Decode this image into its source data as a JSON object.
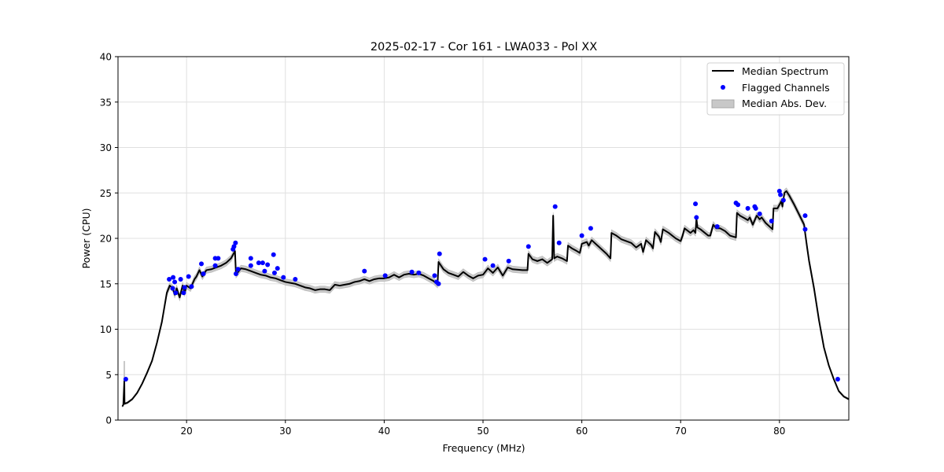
{
  "chart_data": {
    "type": "line",
    "title": "2025-02-17 - Cor 161 - LWA033 - Pol XX",
    "xlabel": "Frequency (MHz)",
    "ylabel": "Power (CPU)",
    "xlim": [
      13.06,
      87.02
    ],
    "ylim": [
      0,
      40
    ],
    "xticks": [
      20,
      30,
      40,
      50,
      60,
      70,
      80
    ],
    "yticks": [
      0,
      5,
      10,
      15,
      20,
      25,
      30,
      35,
      40
    ],
    "grid": true,
    "legend_position": "top-right",
    "legend": [
      "Median Spectrum",
      "Flagged Channels",
      "Median Abs. Dev."
    ],
    "colors": {
      "median": "#000000",
      "flagged": "#0000ff",
      "mad": "#c8c8c8"
    },
    "mad_halfwidth": 0.35,
    "series": [
      {
        "name": "Median Spectrum",
        "points": [
          [
            13.5,
            1.5
          ],
          [
            13.6,
            1.7
          ],
          [
            13.7,
            4.3
          ],
          [
            13.72,
            1.8
          ],
          [
            14,
            1.9
          ],
          [
            14.5,
            2.3
          ],
          [
            15,
            3.0
          ],
          [
            15.5,
            4.0
          ],
          [
            16,
            5.2
          ],
          [
            16.5,
            6.5
          ],
          [
            17,
            8.5
          ],
          [
            17.5,
            10.8
          ],
          [
            18,
            14.0
          ],
          [
            18.3,
            14.8
          ],
          [
            18.6,
            14.5
          ],
          [
            18.8,
            13.8
          ],
          [
            19,
            14.5
          ],
          [
            19.3,
            13.5
          ],
          [
            19.6,
            14.8
          ],
          [
            19.8,
            14.0
          ],
          [
            20,
            14.8
          ],
          [
            20.4,
            14.5
          ],
          [
            20.8,
            15.5
          ],
          [
            21,
            15.8
          ],
          [
            21.3,
            16.5
          ],
          [
            21.6,
            15.8
          ],
          [
            22,
            16.5
          ],
          [
            22.5,
            16.6
          ],
          [
            23,
            16.8
          ],
          [
            23.5,
            17.0
          ],
          [
            24,
            17.3
          ],
          [
            24.5,
            17.8
          ],
          [
            24.9,
            18.6
          ],
          [
            25,
            16.0
          ],
          [
            25.5,
            16.7
          ],
          [
            26,
            16.6
          ],
          [
            26.5,
            16.4
          ],
          [
            27,
            16.2
          ],
          [
            27.5,
            16.0
          ],
          [
            28,
            15.9
          ],
          [
            28.5,
            15.7
          ],
          [
            29,
            15.6
          ],
          [
            29.5,
            15.4
          ],
          [
            30,
            15.2
          ],
          [
            30.5,
            15.1
          ],
          [
            31,
            15.0
          ],
          [
            31.5,
            14.8
          ],
          [
            32,
            14.6
          ],
          [
            32.5,
            14.5
          ],
          [
            33,
            14.3
          ],
          [
            33.5,
            14.4
          ],
          [
            34,
            14.4
          ],
          [
            34.5,
            14.3
          ],
          [
            35,
            14.9
          ],
          [
            35.5,
            14.8
          ],
          [
            36,
            14.9
          ],
          [
            36.5,
            15.0
          ],
          [
            37,
            15.2
          ],
          [
            37.5,
            15.3
          ],
          [
            38,
            15.5
          ],
          [
            38.5,
            15.3
          ],
          [
            39,
            15.5
          ],
          [
            39.5,
            15.6
          ],
          [
            40,
            15.6
          ],
          [
            40.5,
            15.7
          ],
          [
            41,
            16.0
          ],
          [
            41.5,
            15.7
          ],
          [
            42,
            16.0
          ],
          [
            42.5,
            16.1
          ],
          [
            43,
            16.0
          ],
          [
            43.5,
            16.1
          ],
          [
            44,
            15.9
          ],
          [
            44.5,
            15.6
          ],
          [
            45,
            15.3
          ],
          [
            45.4,
            14.9
          ],
          [
            45.5,
            17.4
          ],
          [
            46,
            16.6
          ],
          [
            46.5,
            16.2
          ],
          [
            47,
            16.0
          ],
          [
            47.5,
            15.8
          ],
          [
            48,
            16.3
          ],
          [
            48.5,
            15.9
          ],
          [
            49,
            15.6
          ],
          [
            49.5,
            15.9
          ],
          [
            50,
            16.0
          ],
          [
            50.5,
            16.7
          ],
          [
            51,
            16.2
          ],
          [
            51.5,
            16.8
          ],
          [
            52,
            15.9
          ],
          [
            52.5,
            16.8
          ],
          [
            53,
            16.6
          ],
          [
            54,
            16.5
          ],
          [
            54.5,
            16.5
          ],
          [
            54.6,
            18.3
          ],
          [
            55,
            17.7
          ],
          [
            55.5,
            17.5
          ],
          [
            56,
            17.7
          ],
          [
            56.5,
            17.3
          ],
          [
            57,
            17.7
          ],
          [
            57.1,
            22.5
          ],
          [
            57.2,
            17.8
          ],
          [
            57.5,
            18.0
          ],
          [
            58,
            17.8
          ],
          [
            58.5,
            17.5
          ],
          [
            58.6,
            19.2
          ],
          [
            59,
            18.9
          ],
          [
            59.5,
            18.6
          ],
          [
            59.8,
            18.4
          ],
          [
            60,
            19.4
          ],
          [
            60.5,
            19.6
          ],
          [
            60.7,
            19.2
          ],
          [
            61,
            19.8
          ],
          [
            61.5,
            19.3
          ],
          [
            62,
            18.8
          ],
          [
            62.5,
            18.3
          ],
          [
            62.9,
            17.8
          ],
          [
            63,
            20.6
          ],
          [
            63.5,
            20.3
          ],
          [
            64,
            19.9
          ],
          [
            65,
            19.5
          ],
          [
            65.5,
            19.0
          ],
          [
            66,
            19.4
          ],
          [
            66.2,
            18.5
          ],
          [
            66.5,
            19.8
          ],
          [
            67,
            19.3
          ],
          [
            67.2,
            18.9
          ],
          [
            67.4,
            20.7
          ],
          [
            67.8,
            20.2
          ],
          [
            68,
            19.6
          ],
          [
            68.2,
            21.0
          ],
          [
            68.8,
            20.6
          ],
          [
            69.5,
            20.0
          ],
          [
            70,
            19.7
          ],
          [
            70.2,
            20.3
          ],
          [
            70.4,
            21.1
          ],
          [
            71,
            20.6
          ],
          [
            71.3,
            20.9
          ],
          [
            71.5,
            20.6
          ],
          [
            71.6,
            22.2
          ],
          [
            71.7,
            21.2
          ],
          [
            72,
            21.0
          ],
          [
            72.8,
            20.3
          ],
          [
            73,
            20.3
          ],
          [
            73.3,
            21.5
          ],
          [
            73.6,
            21.1
          ],
          [
            74,
            21.1
          ],
          [
            74.5,
            20.8
          ],
          [
            75,
            20.3
          ],
          [
            75.6,
            20.1
          ],
          [
            75.7,
            22.8
          ],
          [
            76,
            22.5
          ],
          [
            76.5,
            22.2
          ],
          [
            76.8,
            22.0
          ],
          [
            77.0,
            22.3
          ],
          [
            77.3,
            21.5
          ],
          [
            77.7,
            22.5
          ],
          [
            78.0,
            22.1
          ],
          [
            78.2,
            22.3
          ],
          [
            78.6,
            21.7
          ],
          [
            79.3,
            21.0
          ],
          [
            79.4,
            23.3
          ],
          [
            79.8,
            23.3
          ],
          [
            80.0,
            23.7
          ],
          [
            80.2,
            24.1
          ],
          [
            80.3,
            23.5
          ],
          [
            80.5,
            25.0
          ],
          [
            80.7,
            25.2
          ],
          [
            81,
            24.7
          ],
          [
            81.5,
            23.7
          ],
          [
            82,
            22.6
          ],
          [
            82.5,
            21.5
          ],
          [
            82.6,
            20.6
          ],
          [
            82.8,
            19.0
          ],
          [
            83,
            17.5
          ],
          [
            83.5,
            14.5
          ],
          [
            84,
            11.0
          ],
          [
            84.5,
            8.0
          ],
          [
            85,
            6.0
          ],
          [
            85.5,
            4.5
          ],
          [
            86,
            3.2
          ],
          [
            86.5,
            2.6
          ],
          [
            87,
            2.3
          ]
        ]
      },
      {
        "name": "Flagged Channels",
        "points": [
          [
            13.85,
            4.5
          ],
          [
            18.24,
            15.5
          ],
          [
            18.64,
            15.7
          ],
          [
            18.8,
            15.2
          ],
          [
            18.6,
            14.5
          ],
          [
            18.9,
            14.0
          ],
          [
            19.4,
            15.5
          ],
          [
            19.7,
            14.0
          ],
          [
            19.8,
            14.6
          ],
          [
            20.2,
            15.8
          ],
          [
            20.5,
            14.7
          ],
          [
            21.5,
            17.2
          ],
          [
            21.7,
            16.1
          ],
          [
            22.9,
            17.8
          ],
          [
            23.2,
            17.8
          ],
          [
            22.9,
            17.0
          ],
          [
            24.7,
            18.8
          ],
          [
            24.8,
            19.1
          ],
          [
            24.95,
            19.5
          ],
          [
            25.0,
            16.1
          ],
          [
            25.2,
            16.6
          ],
          [
            26.5,
            17.8
          ],
          [
            26.5,
            17.0
          ],
          [
            27.3,
            17.3
          ],
          [
            27.7,
            17.3
          ],
          [
            27.9,
            16.4
          ],
          [
            28.2,
            17.1
          ],
          [
            28.8,
            18.2
          ],
          [
            28.9,
            16.2
          ],
          [
            29.2,
            16.7
          ],
          [
            29.8,
            15.7
          ],
          [
            31.0,
            15.5
          ],
          [
            38.0,
            16.4
          ],
          [
            40.1,
            15.9
          ],
          [
            42.8,
            16.3
          ],
          [
            43.5,
            16.2
          ],
          [
            45.1,
            15.9
          ],
          [
            45.3,
            15.2
          ],
          [
            45.5,
            15.0
          ],
          [
            45.6,
            18.3
          ],
          [
            50.2,
            17.7
          ],
          [
            51.0,
            17.0
          ],
          [
            52.6,
            17.5
          ],
          [
            54.6,
            19.1
          ],
          [
            57.3,
            23.5
          ],
          [
            57.7,
            19.5
          ],
          [
            60.0,
            20.3
          ],
          [
            60.9,
            21.1
          ],
          [
            71.5,
            23.8
          ],
          [
            71.6,
            22.3
          ],
          [
            73.7,
            21.3
          ],
          [
            75.6,
            23.9
          ],
          [
            75.8,
            23.7
          ],
          [
            76.8,
            23.3
          ],
          [
            77.5,
            23.5
          ],
          [
            77.6,
            23.3
          ],
          [
            78.0,
            22.7
          ],
          [
            79.2,
            21.9
          ],
          [
            80.0,
            25.2
          ],
          [
            80.1,
            24.8
          ],
          [
            80.4,
            24.2
          ],
          [
            82.6,
            22.5
          ],
          [
            82.6,
            21.0
          ],
          [
            85.9,
            4.5
          ]
        ]
      }
    ]
  }
}
